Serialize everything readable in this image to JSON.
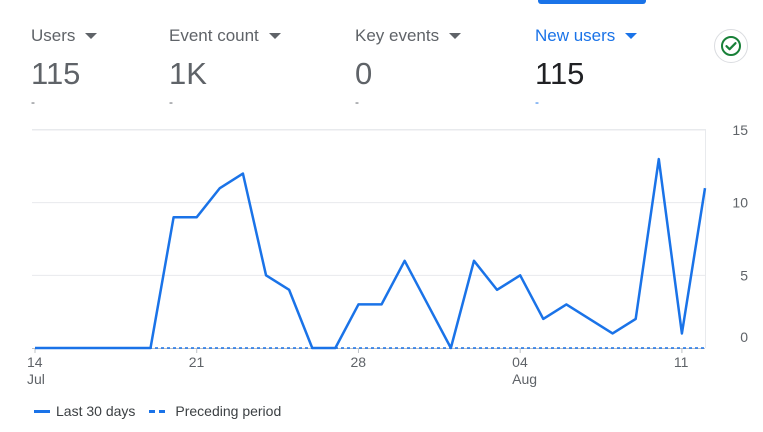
{
  "metrics": [
    {
      "label": "Users",
      "value": "115",
      "delta": "-",
      "active": false
    },
    {
      "label": "Event count",
      "value": "1K",
      "delta": "-",
      "active": false
    },
    {
      "label": "Key events",
      "value": "0",
      "delta": "-",
      "active": false
    },
    {
      "label": "New users",
      "value": "115",
      "delta": "-",
      "active": true
    }
  ],
  "status_icon": "check-circle-icon",
  "colors": {
    "accent": "#1a73e8",
    "check": "#188038",
    "grid": "#e8eaed"
  },
  "legend": {
    "current": "Last 30 days",
    "previous": "Preceding period"
  },
  "chart_data": {
    "type": "line",
    "x_ticks": [
      {
        "day": 14,
        "label": "14",
        "sub": "Jul"
      },
      {
        "day": 21,
        "label": "21",
        "sub": ""
      },
      {
        "day": 28,
        "label": "28",
        "sub": ""
      },
      {
        "day": 35,
        "label": "04",
        "sub": "Aug"
      },
      {
        "day": 42,
        "label": "11",
        "sub": ""
      }
    ],
    "x_range": [
      14,
      43
    ],
    "y_ticks": [
      0,
      5,
      10,
      15
    ],
    "ylim": [
      0,
      15
    ],
    "axis_position": "right",
    "grid": true,
    "legend_position": "bottom-left",
    "series": [
      {
        "name": "Last 30 days",
        "style": "solid",
        "x": [
          14,
          15,
          16,
          17,
          18,
          19,
          20,
          21,
          22,
          23,
          24,
          25,
          26,
          27,
          28,
          29,
          30,
          31,
          32,
          33,
          34,
          35,
          36,
          37,
          38,
          39,
          40,
          41,
          42,
          43
        ],
        "values": [
          0,
          0,
          0,
          0,
          0,
          0,
          9,
          9,
          11,
          12,
          5,
          4,
          0,
          0,
          3,
          3,
          6,
          3,
          0,
          6,
          4,
          5,
          2,
          3,
          2,
          1,
          2,
          13,
          1,
          11
        ]
      },
      {
        "name": "Preceding period",
        "style": "dashed",
        "x": [
          14,
          15,
          16,
          17,
          18,
          19,
          20,
          21,
          22,
          23,
          24,
          25,
          26,
          27,
          28,
          29,
          30,
          31,
          32,
          33,
          34,
          35,
          36,
          37,
          38,
          39,
          40,
          41,
          42,
          43
        ],
        "values": [
          0,
          0,
          0,
          0,
          0,
          0,
          0,
          0,
          0,
          0,
          0,
          0,
          0,
          0,
          0,
          0,
          0,
          0,
          0,
          0,
          0,
          0,
          0,
          0,
          0,
          0,
          0,
          0,
          0,
          0
        ]
      }
    ]
  }
}
